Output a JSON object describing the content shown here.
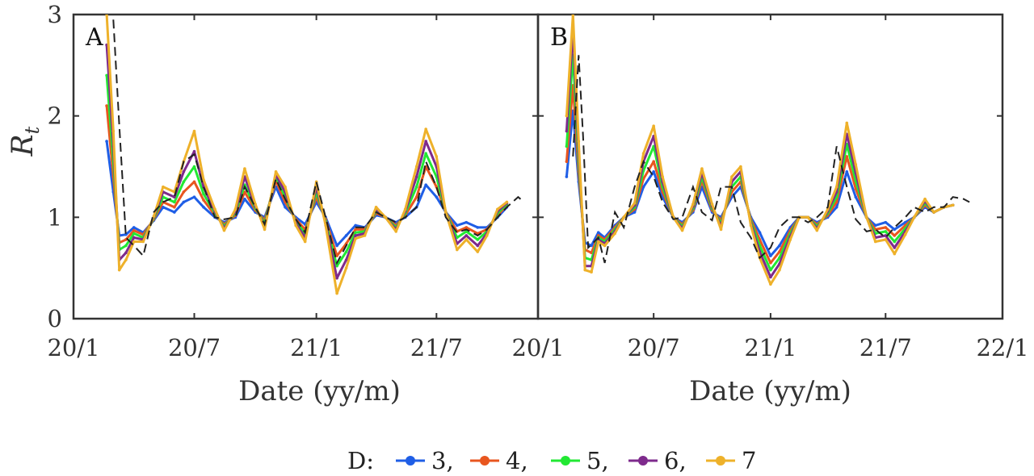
{
  "chart_data": [
    {
      "type": "line",
      "panel_label": "A",
      "xlabel": "Date (yy/m)",
      "ylabel": "R",
      "ylabel_subscript": "t",
      "xlim": [
        "2020-01-01",
        "2021-12-01"
      ],
      "ylim": [
        0,
        3
      ],
      "x_ticks": [
        {
          "date": "2020-01-01",
          "label": "20/1"
        },
        {
          "date": "2020-07-01",
          "label": "20/7"
        },
        {
          "date": "2021-01-01",
          "label": "21/1"
        },
        {
          "date": "2021-07-01",
          "label": "21/7"
        }
      ],
      "y_ticks": [
        0,
        1,
        2,
        3
      ],
      "grid": false,
      "dates": [
        "2020-02-20",
        "2020-03-01",
        "2020-03-10",
        "2020-03-20",
        "2020-04-01",
        "2020-04-15",
        "2020-05-01",
        "2020-05-15",
        "2020-06-01",
        "2020-06-15",
        "2020-07-01",
        "2020-07-15",
        "2020-08-01",
        "2020-08-15",
        "2020-09-01",
        "2020-09-15",
        "2020-10-01",
        "2020-10-15",
        "2020-11-01",
        "2020-11-15",
        "2020-12-01",
        "2020-12-15",
        "2021-01-01",
        "2021-01-15",
        "2021-02-01",
        "2021-02-15",
        "2021-03-01",
        "2021-03-15",
        "2021-04-01",
        "2021-04-15",
        "2021-05-01",
        "2021-05-15",
        "2021-06-01",
        "2021-06-15",
        "2021-07-01",
        "2021-07-15",
        "2021-08-01",
        "2021-08-15",
        "2021-09-01",
        "2021-09-15",
        "2021-10-01",
        "2021-10-15"
      ],
      "series": [
        {
          "name": "3",
          "color": "#1f5ee6",
          "values": [
            1.75,
            1.25,
            0.82,
            0.83,
            0.9,
            0.85,
            0.97,
            1.1,
            1.05,
            1.15,
            1.2,
            1.1,
            1.0,
            0.95,
            1.0,
            1.18,
            1.05,
            1.0,
            1.3,
            1.1,
            1.0,
            0.93,
            1.15,
            1.0,
            0.72,
            0.82,
            0.92,
            0.9,
            1.02,
            1.0,
            0.95,
            1.0,
            1.1,
            1.32,
            1.2,
            1.05,
            0.92,
            0.95,
            0.9,
            0.9,
            1.0,
            1.1
          ]
        },
        {
          "name": "4",
          "color": "#e8561f",
          "values": [
            2.1,
            1.4,
            0.75,
            0.78,
            0.87,
            0.83,
            0.98,
            1.15,
            1.1,
            1.25,
            1.35,
            1.17,
            1.02,
            0.93,
            1.02,
            1.25,
            1.07,
            0.97,
            1.36,
            1.15,
            0.98,
            0.88,
            1.2,
            0.98,
            0.62,
            0.74,
            0.88,
            0.88,
            1.04,
            1.0,
            0.92,
            1.02,
            1.2,
            1.5,
            1.3,
            1.05,
            0.86,
            0.9,
            0.84,
            0.88,
            1.02,
            1.12
          ]
        },
        {
          "name": "5",
          "color": "#22e833",
          "values": [
            2.4,
            1.55,
            0.68,
            0.72,
            0.84,
            0.8,
            0.99,
            1.2,
            1.15,
            1.35,
            1.5,
            1.23,
            1.04,
            0.91,
            1.04,
            1.32,
            1.09,
            0.94,
            1.4,
            1.2,
            0.96,
            0.84,
            1.25,
            0.96,
            0.52,
            0.66,
            0.85,
            0.86,
            1.06,
            1.0,
            0.9,
            1.04,
            1.3,
            1.63,
            1.4,
            1.05,
            0.8,
            0.86,
            0.78,
            0.86,
            1.04,
            1.13
          ]
        },
        {
          "name": "6",
          "color": "#7e2a8c",
          "values": [
            2.7,
            1.7,
            0.58,
            0.65,
            0.8,
            0.78,
            1.0,
            1.25,
            1.2,
            1.45,
            1.65,
            1.3,
            1.06,
            0.89,
            1.06,
            1.4,
            1.11,
            0.91,
            1.42,
            1.25,
            0.94,
            0.8,
            1.3,
            0.94,
            0.4,
            0.58,
            0.82,
            0.84,
            1.08,
            1.0,
            0.88,
            1.06,
            1.4,
            1.75,
            1.5,
            1.05,
            0.74,
            0.82,
            0.72,
            0.84,
            1.06,
            1.14
          ]
        },
        {
          "name": "7",
          "color": "#eeb12a",
          "values": [
            3.0,
            1.85,
            0.48,
            0.58,
            0.76,
            0.76,
            1.01,
            1.3,
            1.25,
            1.55,
            1.85,
            1.37,
            1.08,
            0.87,
            1.08,
            1.48,
            1.13,
            0.88,
            1.45,
            1.3,
            0.92,
            0.76,
            1.35,
            0.92,
            0.25,
            0.5,
            0.79,
            0.82,
            1.1,
            1.0,
            0.86,
            1.08,
            1.5,
            1.87,
            1.6,
            1.05,
            0.68,
            0.78,
            0.66,
            0.82,
            1.08,
            1.15
          ]
        }
      ],
      "reference": {
        "style": "dashed",
        "color": "#222222",
        "dates": [
          "2020-03-01",
          "2020-03-10",
          "2020-03-20",
          "2020-04-01",
          "2020-04-15",
          "2020-05-01",
          "2020-05-15",
          "2020-06-01",
          "2020-06-15",
          "2020-07-01",
          "2020-07-15",
          "2020-08-01",
          "2020-08-15",
          "2020-09-01",
          "2020-09-15",
          "2020-10-01",
          "2020-10-15",
          "2020-11-01",
          "2020-11-15",
          "2020-12-01",
          "2020-12-15",
          "2021-01-01",
          "2021-01-15",
          "2021-02-01",
          "2021-02-15",
          "2021-03-01",
          "2021-03-15",
          "2021-04-01",
          "2021-04-15",
          "2021-05-01",
          "2021-05-15",
          "2021-06-01",
          "2021-06-15",
          "2021-07-01",
          "2021-07-15",
          "2021-08-01",
          "2021-08-15",
          "2021-09-01",
          "2021-09-15",
          "2021-10-01",
          "2021-10-15",
          "2021-11-01",
          "2021-11-10"
        ],
        "values": [
          2.95,
          1.9,
          0.8,
          0.72,
          0.62,
          1.05,
          1.15,
          1.2,
          1.55,
          1.62,
          1.3,
          1.0,
          0.98,
          1.0,
          1.3,
          1.1,
          0.93,
          1.38,
          1.18,
          0.98,
          0.85,
          1.35,
          1.0,
          0.55,
          0.72,
          0.9,
          0.9,
          1.05,
          1.0,
          0.95,
          1.0,
          1.1,
          1.55,
          1.3,
          1.0,
          0.85,
          0.88,
          0.82,
          0.88,
          1.0,
          1.1,
          1.2,
          1.15
        ]
      }
    },
    {
      "type": "line",
      "panel_label": "B",
      "xlabel": "Date (yy/m)",
      "xlim": [
        "2020-01-01",
        "2022-01-01"
      ],
      "ylim": [
        0,
        3
      ],
      "x_ticks": [
        {
          "date": "2020-01-01",
          "label": "20/1"
        },
        {
          "date": "2020-07-01",
          "label": "20/7"
        },
        {
          "date": "2021-01-01",
          "label": "21/1"
        },
        {
          "date": "2021-07-01",
          "label": "21/7"
        },
        {
          "date": "2022-01-01",
          "label": "22/1"
        }
      ],
      "grid": false,
      "dates": [
        "2020-02-15",
        "2020-02-25",
        "2020-03-05",
        "2020-03-15",
        "2020-03-25",
        "2020-04-05",
        "2020-04-15",
        "2020-05-01",
        "2020-05-15",
        "2020-06-01",
        "2020-06-15",
        "2020-07-01",
        "2020-07-15",
        "2020-08-01",
        "2020-08-15",
        "2020-09-01",
        "2020-09-15",
        "2020-10-01",
        "2020-10-15",
        "2020-11-01",
        "2020-11-15",
        "2020-12-01",
        "2020-12-15",
        "2021-01-01",
        "2021-01-15",
        "2021-02-01",
        "2021-02-15",
        "2021-03-01",
        "2021-03-15",
        "2021-04-01",
        "2021-04-15",
        "2021-05-01",
        "2021-05-15",
        "2021-06-01",
        "2021-06-15",
        "2021-07-01",
        "2021-07-15",
        "2021-08-01",
        "2021-08-15",
        "2021-09-01",
        "2021-09-15",
        "2021-10-01",
        "2021-10-15"
      ],
      "series": [
        {
          "name": "3",
          "color": "#1f5ee6",
          "values": [
            1.4,
            2.05,
            1.35,
            0.75,
            0.72,
            0.85,
            0.8,
            0.92,
            1.0,
            1.05,
            1.3,
            1.45,
            1.2,
            1.0,
            0.95,
            1.05,
            1.3,
            1.05,
            1.0,
            1.2,
            1.3,
            1.0,
            0.85,
            0.62,
            0.72,
            0.9,
            1.0,
            1.0,
            0.95,
            1.0,
            1.1,
            1.45,
            1.2,
            1.0,
            0.92,
            0.95,
            0.88,
            0.95,
            1.0,
            1.1,
            1.05,
            1.1,
            1.12
          ]
        },
        {
          "name": "4",
          "color": "#e8561f",
          "values": [
            1.55,
            2.3,
            1.45,
            0.68,
            0.65,
            0.82,
            0.78,
            0.9,
            1.0,
            1.08,
            1.38,
            1.55,
            1.25,
            1.0,
            0.93,
            1.07,
            1.36,
            1.07,
            0.97,
            1.25,
            1.35,
            0.98,
            0.78,
            0.55,
            0.66,
            0.87,
            1.0,
            1.0,
            0.93,
            1.02,
            1.15,
            1.6,
            1.28,
            1.0,
            0.88,
            0.9,
            0.82,
            0.92,
            1.0,
            1.12,
            1.05,
            1.1,
            1.12
          ]
        },
        {
          "name": "5",
          "color": "#22e833",
          "values": [
            1.7,
            2.6,
            1.55,
            0.6,
            0.58,
            0.8,
            0.76,
            0.88,
            1.0,
            1.1,
            1.46,
            1.7,
            1.3,
            1.0,
            0.91,
            1.09,
            1.4,
            1.09,
            0.94,
            1.3,
            1.4,
            0.96,
            0.72,
            0.48,
            0.6,
            0.84,
            1.0,
            1.0,
            0.91,
            1.04,
            1.2,
            1.72,
            1.36,
            1.0,
            0.84,
            0.86,
            0.76,
            0.89,
            1.0,
            1.14,
            1.05,
            1.1,
            1.12
          ]
        },
        {
          "name": "6",
          "color": "#7e2a8c",
          "values": [
            1.85,
            2.85,
            1.65,
            0.52,
            0.52,
            0.78,
            0.74,
            0.86,
            1.0,
            1.12,
            1.55,
            1.8,
            1.35,
            1.0,
            0.89,
            1.11,
            1.44,
            1.11,
            0.91,
            1.35,
            1.45,
            0.94,
            0.66,
            0.41,
            0.54,
            0.81,
            1.0,
            1.0,
            0.89,
            1.06,
            1.25,
            1.82,
            1.44,
            1.0,
            0.8,
            0.82,
            0.7,
            0.86,
            1.0,
            1.16,
            1.05,
            1.1,
            1.12
          ]
        },
        {
          "name": "7",
          "color": "#eeb12a",
          "values": [
            2.0,
            3.0,
            1.75,
            0.48,
            0.46,
            0.76,
            0.72,
            0.84,
            1.0,
            1.14,
            1.63,
            1.9,
            1.4,
            1.0,
            0.87,
            1.13,
            1.48,
            1.13,
            0.88,
            1.4,
            1.5,
            0.92,
            0.6,
            0.34,
            0.48,
            0.78,
            1.0,
            1.0,
            0.87,
            1.08,
            1.3,
            1.93,
            1.52,
            1.0,
            0.76,
            0.78,
            0.64,
            0.83,
            1.0,
            1.18,
            1.05,
            1.1,
            1.12
          ]
        }
      ],
      "reference": {
        "style": "dashed",
        "color": "#222222",
        "dates": [
          "2020-02-25",
          "2020-03-05",
          "2020-03-12",
          "2020-03-20",
          "2020-03-28",
          "2020-04-05",
          "2020-04-15",
          "2020-05-01",
          "2020-05-15",
          "2020-06-01",
          "2020-06-15",
          "2020-07-01",
          "2020-07-15",
          "2020-08-01",
          "2020-08-15",
          "2020-09-01",
          "2020-09-15",
          "2020-10-01",
          "2020-10-15",
          "2020-11-01",
          "2020-11-15",
          "2020-12-01",
          "2020-12-15",
          "2021-01-01",
          "2021-01-15",
          "2021-02-01",
          "2021-02-15",
          "2021-03-01",
          "2021-03-15",
          "2021-04-01",
          "2021-04-15",
          "2021-05-01",
          "2021-05-15",
          "2021-06-01",
          "2021-06-15",
          "2021-07-01",
          "2021-07-15",
          "2021-08-01",
          "2021-08-15",
          "2021-09-01",
          "2021-09-15",
          "2021-10-01",
          "2021-10-15",
          "2021-11-01",
          "2021-11-10"
        ],
        "values": [
          1.6,
          2.6,
          1.8,
          0.7,
          0.75,
          0.8,
          0.55,
          1.05,
          0.9,
          1.3,
          1.55,
          1.4,
          1.15,
          0.98,
          1.0,
          1.3,
          1.05,
          0.97,
          1.3,
          1.3,
          0.95,
          0.8,
          0.6,
          0.7,
          0.9,
          1.0,
          1.0,
          0.95,
          1.0,
          1.1,
          1.7,
          1.3,
          0.98,
          0.86,
          0.88,
          0.8,
          0.9,
          1.0,
          1.1,
          1.05,
          1.1,
          1.1,
          1.2,
          1.18,
          1.15
        ]
      }
    }
  ],
  "legend": {
    "title": "D:",
    "items": [
      {
        "label": "3,",
        "color": "#1f5ee6"
      },
      {
        "label": "4,",
        "color": "#e8561f"
      },
      {
        "label": "5,",
        "color": "#22e833"
      },
      {
        "label": "6,",
        "color": "#7e2a8c"
      },
      {
        "label": "7",
        "color": "#eeb12a"
      }
    ]
  }
}
